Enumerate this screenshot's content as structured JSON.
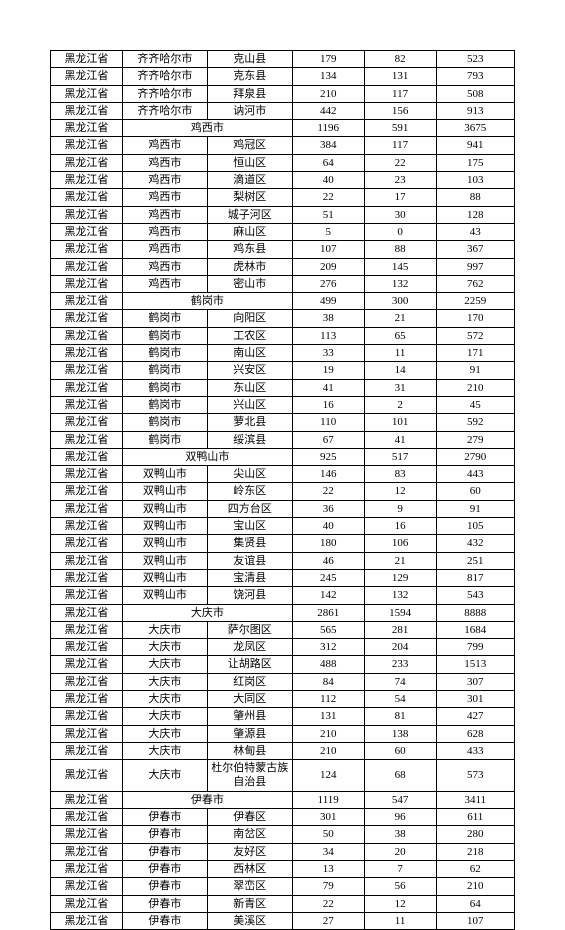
{
  "table": {
    "columns": [
      "province",
      "city",
      "district",
      "v1",
      "v2",
      "v3"
    ],
    "rows": [
      [
        "黑龙江省",
        "齐齐哈尔市",
        "克山县",
        "179",
        "82",
        "523"
      ],
      [
        "黑龙江省",
        "齐齐哈尔市",
        "克东县",
        "134",
        "131",
        "793"
      ],
      [
        "黑龙江省",
        "齐齐哈尔市",
        "拜泉县",
        "210",
        "117",
        "508"
      ],
      [
        "黑龙江省",
        "齐齐哈尔市",
        "讷河市",
        "442",
        "156",
        "913"
      ],
      [
        "黑龙江省",
        "鸡西市",
        "",
        "1196",
        "591",
        "3675"
      ],
      [
        "黑龙江省",
        "鸡西市",
        "鸡冠区",
        "384",
        "117",
        "941"
      ],
      [
        "黑龙江省",
        "鸡西市",
        "恒山区",
        "64",
        "22",
        "175"
      ],
      [
        "黑龙江省",
        "鸡西市",
        "滴道区",
        "40",
        "23",
        "103"
      ],
      [
        "黑龙江省",
        "鸡西市",
        "梨树区",
        "22",
        "17",
        "88"
      ],
      [
        "黑龙江省",
        "鸡西市",
        "城子河区",
        "51",
        "30",
        "128"
      ],
      [
        "黑龙江省",
        "鸡西市",
        "麻山区",
        "5",
        "0",
        "43"
      ],
      [
        "黑龙江省",
        "鸡西市",
        "鸡东县",
        "107",
        "88",
        "367"
      ],
      [
        "黑龙江省",
        "鸡西市",
        "虎林市",
        "209",
        "145",
        "997"
      ],
      [
        "黑龙江省",
        "鸡西市",
        "密山市",
        "276",
        "132",
        "762"
      ],
      [
        "黑龙江省",
        "鹤岗市",
        "",
        "499",
        "300",
        "2259"
      ],
      [
        "黑龙江省",
        "鹤岗市",
        "向阳区",
        "38",
        "21",
        "170"
      ],
      [
        "黑龙江省",
        "鹤岗市",
        "工农区",
        "113",
        "65",
        "572"
      ],
      [
        "黑龙江省",
        "鹤岗市",
        "南山区",
        "33",
        "11",
        "171"
      ],
      [
        "黑龙江省",
        "鹤岗市",
        "兴安区",
        "19",
        "14",
        "91"
      ],
      [
        "黑龙江省",
        "鹤岗市",
        "东山区",
        "41",
        "31",
        "210"
      ],
      [
        "黑龙江省",
        "鹤岗市",
        "兴山区",
        "16",
        "2",
        "45"
      ],
      [
        "黑龙江省",
        "鹤岗市",
        "萝北县",
        "110",
        "101",
        "592"
      ],
      [
        "黑龙江省",
        "鹤岗市",
        "绥滨县",
        "67",
        "41",
        "279"
      ],
      [
        "黑龙江省",
        "双鸭山市",
        "",
        "925",
        "517",
        "2790"
      ],
      [
        "黑龙江省",
        "双鸭山市",
        "尖山区",
        "146",
        "83",
        "443"
      ],
      [
        "黑龙江省",
        "双鸭山市",
        "岭东区",
        "22",
        "12",
        "60"
      ],
      [
        "黑龙江省",
        "双鸭山市",
        "四方台区",
        "36",
        "9",
        "91"
      ],
      [
        "黑龙江省",
        "双鸭山市",
        "宝山区",
        "40",
        "16",
        "105"
      ],
      [
        "黑龙江省",
        "双鸭山市",
        "集贤县",
        "180",
        "106",
        "432"
      ],
      [
        "黑龙江省",
        "双鸭山市",
        "友谊县",
        "46",
        "21",
        "251"
      ],
      [
        "黑龙江省",
        "双鸭山市",
        "宝清县",
        "245",
        "129",
        "817"
      ],
      [
        "黑龙江省",
        "双鸭山市",
        "饶河县",
        "142",
        "132",
        "543"
      ],
      [
        "黑龙江省",
        "大庆市",
        "",
        "2861",
        "1594",
        "8888"
      ],
      [
        "黑龙江省",
        "大庆市",
        "萨尔图区",
        "565",
        "281",
        "1684"
      ],
      [
        "黑龙江省",
        "大庆市",
        "龙凤区",
        "312",
        "204",
        "799"
      ],
      [
        "黑龙江省",
        "大庆市",
        "让胡路区",
        "488",
        "233",
        "1513"
      ],
      [
        "黑龙江省",
        "大庆市",
        "红岗区",
        "84",
        "74",
        "307"
      ],
      [
        "黑龙江省",
        "大庆市",
        "大同区",
        "112",
        "54",
        "301"
      ],
      [
        "黑龙江省",
        "大庆市",
        "肇州县",
        "131",
        "81",
        "427"
      ],
      [
        "黑龙江省",
        "大庆市",
        "肇源县",
        "210",
        "138",
        "628"
      ],
      [
        "黑龙江省",
        "大庆市",
        "林甸县",
        "210",
        "60",
        "433"
      ],
      [
        "黑龙江省",
        "大庆市",
        "杜尔伯特蒙古族自治县",
        "124",
        "68",
        "573"
      ],
      [
        "黑龙江省",
        "伊春市",
        "",
        "1119",
        "547",
        "3411"
      ],
      [
        "黑龙江省",
        "伊春市",
        "伊春区",
        "301",
        "96",
        "611"
      ],
      [
        "黑龙江省",
        "伊春市",
        "南岔区",
        "50",
        "38",
        "280"
      ],
      [
        "黑龙江省",
        "伊春市",
        "友好区",
        "34",
        "20",
        "218"
      ],
      [
        "黑龙江省",
        "伊春市",
        "西林区",
        "13",
        "7",
        "62"
      ],
      [
        "黑龙江省",
        "伊春市",
        "翠峦区",
        "79",
        "56",
        "210"
      ],
      [
        "黑龙江省",
        "伊春市",
        "新青区",
        "22",
        "12",
        "64"
      ],
      [
        "黑龙江省",
        "伊春市",
        "美溪区",
        "27",
        "11",
        "107"
      ]
    ],
    "summary_rows": [
      4,
      14,
      23,
      32,
      42
    ],
    "tall_rows": [
      41
    ],
    "border_color": "#000000",
    "background_color": "#ffffff",
    "font_size": 11
  }
}
